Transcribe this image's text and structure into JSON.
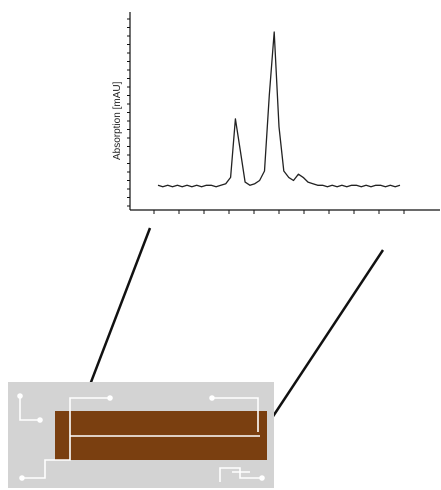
{
  "chart_data": {
    "type": "line",
    "ylabel": "Absorption [mAU]",
    "xlabel": "",
    "title": "",
    "x_ticks": 11,
    "y_ticks": 23,
    "series": [
      {
        "x": [
          0,
          2,
          4,
          6,
          8,
          10,
          12,
          14,
          16,
          18,
          20,
          22,
          24,
          26,
          28,
          30,
          32,
          34,
          36,
          38,
          40,
          42,
          44,
          46,
          48,
          50,
          52,
          54,
          56,
          58,
          60,
          62,
          64,
          66,
          68,
          70,
          72,
          74,
          76,
          78,
          80,
          82,
          84,
          86,
          88,
          90,
          92,
          94,
          96,
          98,
          100
        ],
        "values": [
          3,
          2,
          3,
          2,
          3,
          2,
          3,
          2,
          3,
          2,
          3,
          3,
          2,
          3,
          4,
          8,
          45,
          25,
          5,
          3,
          4,
          6,
          12,
          60,
          100,
          40,
          12,
          8,
          6,
          10,
          8,
          5,
          4,
          3,
          3,
          2,
          3,
          2,
          3,
          2,
          3,
          3,
          2,
          3,
          2,
          3,
          3,
          2,
          3,
          2,
          3
        ]
      }
    ]
  },
  "colors": {
    "chip_background": "#d3d3d3",
    "channel": "#7a3f10",
    "trace": "#222222",
    "circuit": "#ffffff"
  }
}
